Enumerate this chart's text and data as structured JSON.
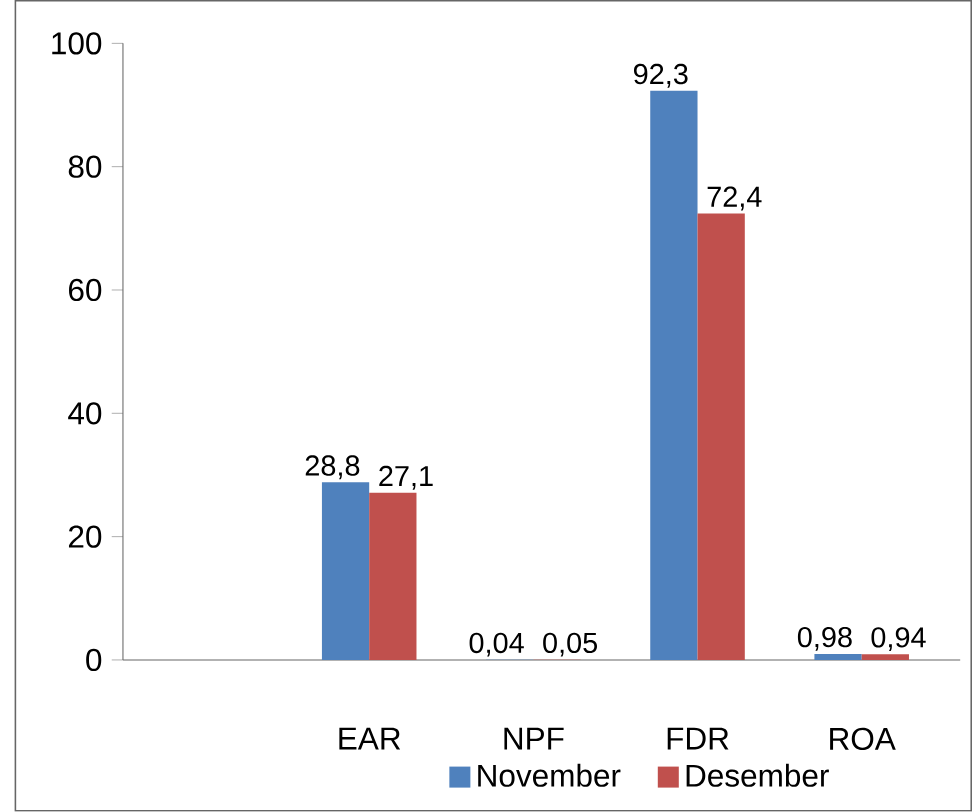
{
  "chart_data": {
    "type": "bar",
    "categories": [
      "EAR",
      "NPF",
      "FDR",
      "ROA"
    ],
    "series": [
      {
        "name": "November",
        "color": "#4f81bd",
        "values": [
          28.8,
          0.04,
          92.3,
          0.98
        ],
        "value_labels": [
          "28,8",
          "0,04",
          "92,3",
          "0,98"
        ]
      },
      {
        "name": "Desember",
        "color": "#c0504d",
        "values": [
          27.1,
          0.05,
          72.4,
          0.94
        ],
        "value_labels": [
          "27,1",
          "0,05",
          "72,4",
          "0,94"
        ]
      }
    ],
    "ylim": [
      0,
      100
    ],
    "yticks": [
      0,
      20,
      40,
      60,
      80,
      100
    ],
    "legend": "bottom"
  }
}
